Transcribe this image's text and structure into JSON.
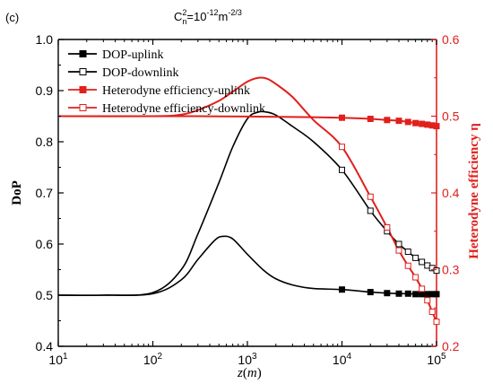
{
  "colors": {
    "left_axis": "#000000",
    "right_axis": "#e0201c",
    "uplink_dop": "#000000",
    "downlink_dop": "#000000",
    "uplink_eff": "#e0201c",
    "downlink_eff": "#e0201c"
  },
  "chart_data": {
    "type": "line",
    "panel_tag": "(c)",
    "title": {
      "base": "C",
      "sup": "2",
      "sub": "n",
      "middle": "=10",
      "exp1": "-12",
      "unit": "m",
      "exp2": "-2/3"
    },
    "xlabel": {
      "var": "z",
      "open": "(",
      "unit": "m",
      "close": ")"
    },
    "ylabel_left": "DoP",
    "ylabel_right": "Heterodyne efficiency η",
    "x_scale": "log",
    "xlim": [
      10,
      100000
    ],
    "ylim_left": [
      0.4,
      1.0
    ],
    "ylim_right": [
      0.2,
      0.6
    ],
    "x_ticks": [
      {
        "value": 10,
        "base": "10",
        "exp": "1"
      },
      {
        "value": 100,
        "base": "10",
        "exp": "2"
      },
      {
        "value": 1000,
        "base": "10",
        "exp": "3"
      },
      {
        "value": 10000,
        "base": "10",
        "exp": "4"
      },
      {
        "value": 100000,
        "base": "10",
        "exp": "5"
      }
    ],
    "y_ticks_left": [
      "0.4",
      "0.5",
      "0.6",
      "0.7",
      "0.8",
      "0.9",
      "1.0"
    ],
    "y_ticks_right": [
      "0.2",
      "0.3",
      "0.4",
      "0.5",
      "0.6"
    ],
    "legend_position": "top-left",
    "series": [
      {
        "name": "DOP-uplink",
        "axis": "left",
        "marker": "filled-square",
        "x": [
          10,
          30,
          100,
          200,
          300,
          450,
          550,
          700,
          1000,
          1500,
          2000,
          3000,
          5000,
          10000,
          20000,
          30000,
          40000,
          50000,
          60000,
          70000,
          80000,
          90000,
          100000
        ],
        "y": [
          0.5,
          0.5,
          0.503,
          0.53,
          0.57,
          0.607,
          0.615,
          0.61,
          0.58,
          0.548,
          0.532,
          0.52,
          0.513,
          0.511,
          0.506,
          0.504,
          0.503,
          0.503,
          0.502,
          0.502,
          0.502,
          0.502,
          0.502
        ],
        "marked_points": [
          10000,
          20000,
          30000,
          40000,
          50000,
          60000,
          70000,
          80000,
          90000,
          100000
        ]
      },
      {
        "name": "DOP-downlink",
        "axis": "left",
        "marker": "open-square",
        "x": [
          10,
          30,
          100,
          200,
          300,
          500,
          700,
          1000,
          1300,
          1600,
          2000,
          3000,
          5000,
          10000,
          20000,
          30000,
          40000,
          50000,
          60000,
          70000,
          80000,
          90000,
          100000
        ],
        "y": [
          0.5,
          0.5,
          0.505,
          0.55,
          0.62,
          0.72,
          0.79,
          0.845,
          0.858,
          0.858,
          0.852,
          0.83,
          0.8,
          0.745,
          0.665,
          0.625,
          0.6,
          0.585,
          0.573,
          0.565,
          0.558,
          0.553,
          0.548
        ],
        "marked_points": [
          10000,
          20000,
          30000,
          40000,
          50000,
          60000,
          70000,
          80000,
          90000,
          100000
        ]
      },
      {
        "name": "Heterodyne efficiency-uplink",
        "axis": "right",
        "marker": "filled-square",
        "x": [
          10,
          100,
          300,
          1000,
          3000,
          10000,
          20000,
          30000,
          40000,
          50000,
          60000,
          70000,
          80000,
          90000,
          100000
        ],
        "y": [
          0.5,
          0.5,
          0.5,
          0.4995,
          0.499,
          0.498,
          0.4965,
          0.495,
          0.494,
          0.4925,
          0.491,
          0.49,
          0.489,
          0.488,
          0.487
        ],
        "marked_points": [
          10000,
          20000,
          30000,
          40000,
          50000,
          60000,
          70000,
          80000,
          90000,
          100000
        ]
      },
      {
        "name": "Heterodyne efficiency-downlink",
        "axis": "right",
        "marker": "open-square",
        "x": [
          10,
          100,
          200,
          300,
          500,
          700,
          1000,
          1300,
          1600,
          2000,
          3000,
          5000,
          10000,
          20000,
          30000,
          40000,
          50000,
          60000,
          70000,
          80000,
          90000,
          100000
        ],
        "y": [
          0.5,
          0.5,
          0.502,
          0.508,
          0.52,
          0.532,
          0.545,
          0.55,
          0.549,
          0.542,
          0.525,
          0.495,
          0.46,
          0.395,
          0.355,
          0.325,
          0.305,
          0.29,
          0.275,
          0.26,
          0.245,
          0.232
        ],
        "marked_points": [
          10000,
          20000,
          30000,
          40000,
          50000,
          60000,
          70000,
          80000,
          90000,
          100000
        ]
      }
    ]
  }
}
